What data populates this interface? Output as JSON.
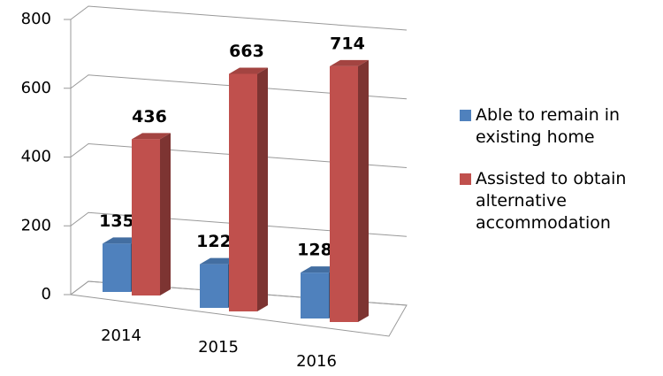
{
  "chart_data": {
    "type": "bar3d",
    "categories": [
      "2014",
      "2015",
      "2016"
    ],
    "series": [
      {
        "name": "Able to remain in existing home",
        "color": "#4f81bd",
        "values": [
          135,
          122,
          128
        ]
      },
      {
        "name": "Assisted to obtain alternative accommodation",
        "color": "#c0504d",
        "values": [
          436,
          663,
          714
        ]
      }
    ],
    "ylim": [
      0,
      800
    ],
    "yticks": [
      0,
      200,
      400,
      600,
      800
    ],
    "grid": true,
    "legend": "right"
  }
}
